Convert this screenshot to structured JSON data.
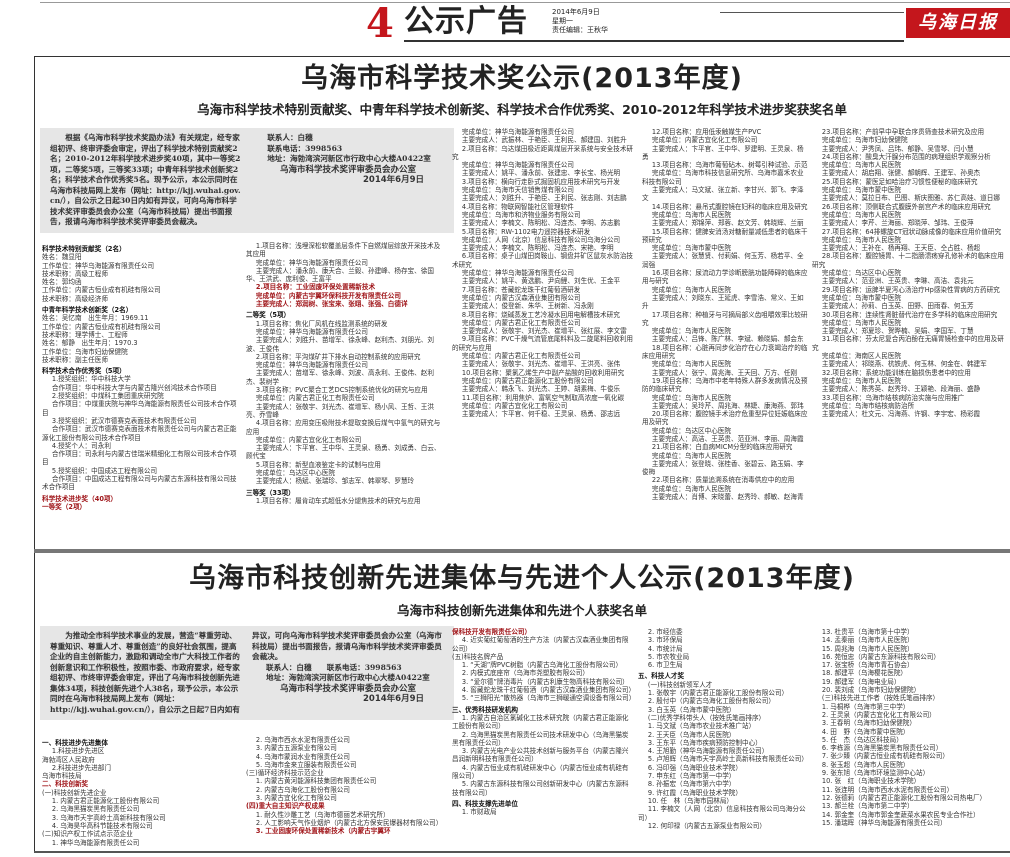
{
  "header": {
    "page_number": "4",
    "section": "公示广告",
    "date": "2014年6月9日",
    "weekday": "星期一",
    "editor": "责任编辑：王秋华",
    "logo_text": "乌海日报",
    "accent_color": "#c4161c"
  },
  "notice1": {
    "title": "乌海市科学技术奖公示(2013年度)",
    "subtitle": "乌海市科学技术特别贡献奖、中青年科学技术创新奖、科学技术合作优秀奖、2010-2012年科学技术进步奖获奖名单",
    "intro_a": "根据《乌海市科学技术奖励办法》有关规定，经专家组初评、终审评委会审定，评出了科学技术特别贡献奖2名；2010-2012年科学技术进步奖40项，其中一等奖2项，二等奖5项，三等奖33项；中青年科学技术创新奖2名；科学技术合作优秀奖5名。现予公示，本公示同时在乌海市科技局网上发布（网址：",
    "intro_url": "http://kjj.wuhai.gov.cn/",
    "intro_b": "），自公示之日起30日内如有异议，可向乌海市科学技术奖评审委员会办公室（乌海市科技局）提出书面报告，报请乌海市科学技术奖评审委员会裁决。",
    "contact": "联系人：白穗",
    "phone": "联系电话：3998563",
    "address": "地址：海勃湾滨河新区市行政中心大楼A0422室",
    "signer": "乌海市科学技术奖评审委员会办公室",
    "date": "2014年6月9日",
    "columns": [
      [
        {
          "s": "h",
          "t": "科学技术特别贡献奖（2名）"
        },
        {
          "t": "姓名：魏显阳"
        },
        {
          "t": "工作单位：神华乌海能源有限责任公司"
        },
        {
          "t": "技术职称：高级工程师"
        },
        {
          "t": "姓名：郭均函"
        },
        {
          "t": "工作单位：内蒙古恒业成有机硅有限公司"
        },
        {
          "t": "技术职称：高级经济师"
        },
        {
          "s": "h",
          "t": "中青年科学技术创新奖（2名）"
        },
        {
          "t": "姓名：吴忆南　出生年月：1969.11"
        },
        {
          "t": "工作单位：内蒙古恒业成有机硅有限公司"
        },
        {
          "t": "技术职称：理学博士、工程师"
        },
        {
          "t": "姓名：郁静　出生年月：1970.3"
        },
        {
          "t": "工作单位：乌海市妇幼保健院"
        },
        {
          "t": "技术职称：副主任医师"
        },
        {
          "s": "h",
          "t": "科学技术合作优秀奖（5项）"
        },
        {
          "s": "i",
          "t": "1.授奖组织：华中科技大学"
        },
        {
          "s": "i",
          "t": "合作项目：华中科技大学与内蒙古隆兴创鸿技术合作项目"
        },
        {
          "s": "i",
          "t": "2.授奖组织：中煤科工集团重庆研究院"
        },
        {
          "s": "i",
          "t": "合作项目：中煤重庆院与神华乌海能源有限责任公司技术合作项目"
        },
        {
          "s": "i",
          "t": "3.授奖组织：武汉市德赛克表面技术有限责任公司"
        },
        {
          "s": "i",
          "t": "合作项目：武汉市德赛克表面技术有限责任公司与内蒙古君正能源化工股份有限公司技术合作项目"
        },
        {
          "s": "i",
          "t": "4.授奖个人：司永利"
        },
        {
          "s": "i",
          "t": "合作项目：司永利与内蒙古佳瑞米精细化工有限公司技术合作项目"
        },
        {
          "s": "i",
          "t": "5.授奖组织：中国成达工程有限公司"
        },
        {
          "s": "i",
          "t": "合作项目：中国成达工程有限公司与内蒙古东源科技有限公司技术合作项目"
        },
        {
          "s": "r h",
          "t": "科学技术进步奖（40项）"
        },
        {
          "s": "r",
          "t": "一等奖（2项）"
        }
      ],
      [
        {
          "s": "i",
          "t": "1.项目名称：浅埋深松软覆盖层条件下自燃煤层综放开采技术及其应用"
        },
        {
          "s": "i",
          "t": "完成单位：神华乌海能源有限责任公司"
        },
        {
          "s": "i",
          "t": "主要完成人：潘永前、康天合、兰毅、孙建峰、杨存宝、徐国华、王洪武、庞利俊、王富平"
        },
        {
          "s": "i r",
          "t": "2.项目名称：工业固废环保处置稀新技术"
        },
        {
          "s": "i r",
          "t": "完成单位：内蒙古宇翼环保科技开发有限责任公司"
        },
        {
          "s": "i r",
          "t": "主要完成人：郑润树、张宝来、张翊、张强、白德详"
        },
        {
          "s": "h",
          "t": "二等奖（5项）"
        },
        {
          "s": "i",
          "t": "1.项目名称：焦化厂风机在线监测系统的研发"
        },
        {
          "s": "i",
          "t": "完成单位：神华乌海能源有限责任公司"
        },
        {
          "s": "i",
          "t": "主要完成人：刘胜升、苗增军、徐永峰、赵利杰、刘朋光、刘波、王俊伟"
        },
        {
          "s": "i",
          "t": "2.项目名称：平沟煤矿井下排水自动控制系统的应用研究"
        },
        {
          "s": "i",
          "t": "完成单位：神华乌海能源有限责任公司"
        },
        {
          "s": "i",
          "t": "主要完成人：苗增军、徐永峰、刘波、高永利、王俊伟、赵利杰、裴树学"
        },
        {
          "s": "i",
          "t": "3.项目名称：PVC聚合工艺DCS控制系统优化的研究与应用"
        },
        {
          "s": "i",
          "t": "完成单位：内蒙古君正化工有限责任公司"
        },
        {
          "s": "i",
          "t": "主要完成人：张敬宇、刘光杰、崔增军、杨小风、王哲、王洪亮、乔雪峰"
        },
        {
          "s": "i",
          "t": "4.项目名称：应用变压吸附技术提取变换后煤气中氢气的研究与应用"
        },
        {
          "s": "i",
          "t": "完成单位：内蒙古宜化化工有限公司"
        },
        {
          "s": "i",
          "t": "主要完成人：卞平官、王中华、王灵泉、杨勇、刘成勇、白云、顾代宝"
        },
        {
          "s": "i",
          "t": "5.项目名称：新型血液鉴定卡的试制与应用"
        },
        {
          "s": "i",
          "t": "完成单位：乌达区中心医院"
        },
        {
          "s": "i",
          "t": "主要完成人：杨斌、张瑞珍、邹志军、韩翠琴、罗慧玲"
        },
        {
          "s": "h",
          "t": "三等奖（33项）"
        },
        {
          "s": "i",
          "t": "1.项目名称：履肯动车式超低水分煺焦技术的研究与应用"
        }
      ],
      [
        {
          "s": "i",
          "t": "完成单位：神华乌海能源有限责任公司"
        },
        {
          "s": "i",
          "t": "主要完成人：武振林、于艳臣、王利民、郝建国、刘胜升"
        },
        {
          "s": "i",
          "t": "2.项目名称：乌达煤田极近距离煤层开采系统与安全技术研究"
        },
        {
          "s": "i",
          "t": "完成单位：神华乌海能源有限责任公司"
        },
        {
          "s": "i",
          "t": "主要完成人：姚平、潘永前、张建忠、李长宝、杨光明"
        },
        {
          "s": "i",
          "t": "3.项目名称：横向行走卧式掘固机应用技术研究与开发"
        },
        {
          "s": "i",
          "t": "完成单位：乌海市天信销售煤有限公司"
        },
        {
          "s": "i",
          "t": "主要完成人：刘胜升、于艳臣、王利民、张志刚、刘志鹏"
        },
        {
          "s": "i",
          "t": "4.项目名称：物联网智能社区管理软件"
        },
        {
          "s": "i",
          "t": "完成单位：乌海市和济物业服务有限公司"
        },
        {
          "s": "i",
          "t": "主要完成人：李楠文、陈明松、冯连杰、李明、苏志鹏"
        },
        {
          "s": "i",
          "t": "5.项目名称：RW-1102电力遥控器技术研发"
        },
        {
          "s": "i",
          "t": "完成单位：人网（北京）信息科技有限公司乌海分公司"
        },
        {
          "s": "i",
          "t": "主要完成人：李楠文、陈明松、冯连杰、宋艳、李明"
        },
        {
          "s": "i",
          "t": "6.项目名称：桌子山煤田岗鞍山、钢盘井矿区鼠灰水防治技术研究"
        },
        {
          "s": "i",
          "t": "完成单位：神华乌海能源有限责任公司"
        },
        {
          "s": "i",
          "t": "主要完成人：姚平、黄选鹏、尹向鲤、刘生优、王金平"
        },
        {
          "s": "i",
          "t": "7.项目名称：苍藏蛇龙珠干红葡萄酒研发"
        },
        {
          "s": "i",
          "t": "完成单位：内蒙古汉森酒业集团有限公司"
        },
        {
          "s": "i",
          "t": "主要完成人：俊登新、朱华、王树新、冯永刚"
        },
        {
          "s": "i",
          "t": "8.项目名称：烧碱蒸发工艺冷凝水回用电解槽技术研究"
        },
        {
          "s": "i",
          "t": "完成单位：内蒙古君正化工有限责任公司"
        },
        {
          "s": "i",
          "t": "主要完成人：张敬宇、刘光杰、崔增平、张红展、李文雷"
        },
        {
          "s": "i",
          "t": "9.项目名称：PVC干燥气流管底尾料料及二旋尾料回收利用的研究与应用"
        },
        {
          "s": "i",
          "t": "完成单位：内蒙古君正化工有限责任公司"
        },
        {
          "s": "i",
          "t": "主要完成人：张敬宇、刘光杰、崔增平、王洪亮、张伟"
        },
        {
          "s": "i",
          "t": "10.项目名称：聚氯乙烯生产中副产盐酸的回收利用研究"
        },
        {
          "s": "i",
          "t": "完成单位：内蒙古君正能源化工股份有限公司"
        },
        {
          "s": "i",
          "t": "主要完成人：韩永飞、刘光杰、王婷、胡素梅、牛俊乐"
        },
        {
          "s": "i",
          "t": "11.项目名称：利用焦炉、富氧空气制取高浓度一氧化碳"
        },
        {
          "s": "i",
          "t": "完成单位：内蒙古宜化化工有限公司"
        },
        {
          "s": "i",
          "t": "主要完成人：卞平官、何千稳、王灵泉、杨勇、邵志远"
        }
      ],
      [
        {
          "s": "i",
          "t": "12.项目名称：应用低汞触媒生产PVC"
        },
        {
          "s": "i",
          "t": "完成单位：内蒙古宜化化工有限公司"
        },
        {
          "s": "i",
          "t": "主要完成人：卞平官、王中华、罗建明、王灵泉、杨勇"
        },
        {
          "s": "i",
          "t": "13.项目名称：乌海市葡萄砧木、树莓引种试验、示范"
        },
        {
          "s": "i",
          "t": "完成单位：乌海市科技信息研究所、乌海市嘉禾农业科技有限公司"
        },
        {
          "s": "i",
          "t": "主要完成人：马文斌、张立新、李甘兴、郭飞、李泽文"
        },
        {
          "s": "i",
          "t": "14.项目名称：悬吊式腹腔镜在妇科的临床应用及研究"
        },
        {
          "s": "i",
          "t": "完成单位：乌海市人民医院"
        },
        {
          "s": "i",
          "t": "主要完成人：郑锦萍、郑蓉、赵文芳、韩晓辉、兰丽"
        },
        {
          "s": "i",
          "t": "15.项目名称：健脾安消汤对糖耐量减低患者的临床干预研究"
        },
        {
          "s": "i",
          "t": "完成单位：乌海市蒙中医院"
        },
        {
          "s": "i",
          "t": "主要完成人：张慧贤、付莉娟、何玉芳、杨若平、全润强"
        },
        {
          "s": "i",
          "t": "16.项目名称：尿流动力学诊断膀胱功能障碍的临床应用与研究"
        },
        {
          "s": "i",
          "t": "完成单位：乌海市人民医院"
        },
        {
          "s": "i",
          "t": "主要完成人：刘晓东、王延虎、李雪浩、常义、王如升"
        },
        {
          "s": "i",
          "t": "17.项目名称：种植牙与可摘局部义齿咀嚼效率比较研究"
        },
        {
          "s": "i",
          "t": "完成单位：乌海市人民医院"
        },
        {
          "s": "i",
          "t": "主要完成人：吕锋、陈广林、李斌、赖晓娟、郝会东"
        },
        {
          "s": "i",
          "t": "18.项目名称：心脏再同步化治疗在心力衰竭治疗的临床应用研究"
        },
        {
          "s": "i",
          "t": "完成单位：乌海市人民医院"
        },
        {
          "s": "i",
          "t": "主要完成人：张宁、周兆海、王天回、万方、任刚"
        },
        {
          "s": "i",
          "t": "19.项目名称：乌海市中老年特殊人群多发病情况及预防的临床研究"
        },
        {
          "s": "i",
          "t": "完成单位：乌海市人民医院"
        },
        {
          "s": "i",
          "t": "主要完成人：吴玲芹、周兆海、林婕、康海燕、郭玮"
        },
        {
          "s": "i",
          "t": "20.项目名称：腹腔镜手术治疗危重型异位妊娠临床应用及研究"
        },
        {
          "s": "i",
          "t": "完成单位：乌达区中心医院"
        },
        {
          "s": "i",
          "t": "主要完成人：高洁、王英贵、范亚洲、李丽、周海霞"
        },
        {
          "s": "i",
          "t": "21.项目名称：白血病MICM分型的临床应用研究"
        },
        {
          "s": "i",
          "t": "完成单位：乌海市人民医院"
        },
        {
          "s": "i",
          "t": "主要完成人：张登晓、张桂香、张碧云、路玉娟、李俊梅"
        },
        {
          "s": "i",
          "t": "22.项目名称：质量追溯系统在消毒供应中的应用"
        },
        {
          "s": "i",
          "t": "完成单位：乌海市人民医院"
        },
        {
          "s": "i",
          "t": "主要完成人：肖博、宋晓蕾、赵秀玲、郝敏、赵海青"
        }
      ],
      [
        {
          "s": "i",
          "t": "23.项目名称：产前早中孕联合序贯筛查技术研究及应用"
        },
        {
          "s": "i",
          "t": "完成单位：乌海市妇幼保健院"
        },
        {
          "s": "i",
          "t": "主要完成人：尹秀凤、吕玮、郁静、吴雪琴、闫小慧"
        },
        {
          "s": "i",
          "t": "24.项目名称：酸臭大汗腺分布范围的病理组织学观察分析"
        },
        {
          "s": "i",
          "t": "完成单位：乌海市人民医院"
        },
        {
          "s": "i",
          "t": "主要完成人：胡启翔、张健、郝朝辉、王建军、孙奥杰"
        },
        {
          "s": "i",
          "t": "25.项目名称：蒙医足如哈治疗习惯性便秘的临床研究"
        },
        {
          "s": "i",
          "t": "完成单位：乌海市蒙中医院"
        },
        {
          "s": "i",
          "t": "主要完成人：莫拉日布、巴图、斯庆图雅、苏仁高娃、道日娜"
        },
        {
          "s": "i",
          "t": "26.项目名称：顶侧联合式腹膜外剖宫产术的临床应用研究"
        },
        {
          "s": "i",
          "t": "完成单位：乌海市人民医院"
        },
        {
          "s": "i",
          "t": "主要完成人：李芹、兰海丽、郑晓萍、邹玮、王俊萍"
        },
        {
          "s": "i",
          "t": "27.项目名称：64排螺旋CT冠状动脉成像的临床应用价值研究"
        },
        {
          "s": "i",
          "t": "完成单位：乌海市人民医院"
        },
        {
          "s": "i",
          "t": "主要完成人：王补在、杨再翔、王天臣、仝占胜、杨超"
        },
        {
          "s": "i",
          "t": "28.项目名称：腹腔镜胃、十二指肠溃疡穿孔修补术的临床应用研究"
        },
        {
          "s": "i",
          "t": "完成单位：乌达区中心医院"
        },
        {
          "s": "i",
          "t": "主要完成人：范亚洲、王英贵、李琳、高洁、袁兆元"
        },
        {
          "s": "i",
          "t": "29.项目名称：运脾半夏泻心汤治疗Hp感染性胃病的方药研究"
        },
        {
          "s": "i",
          "t": "完成单位：乌海市蒙中医院"
        },
        {
          "s": "i",
          "t": "主要完成人：孙莉、白玉英、田野、田雨春、何玉芳"
        },
        {
          "s": "i",
          "t": "30.项目名称：连续性肾脏替代治疗在多学科的临床应用研究"
        },
        {
          "s": "i",
          "t": "完成单位：乌海市人民医院"
        },
        {
          "s": "i",
          "t": "主要完成人：郑夏珍、贺晔楠、吴娟、李国军、丁慧"
        },
        {
          "s": "i",
          "t": "31.项目名称：芬太尼复合丙泊酚在无痛胃镜检查中的应用及研究"
        },
        {
          "s": "i",
          "t": "完成单位：海南区人民医院"
        },
        {
          "s": "i",
          "t": "主要完成人：祁晓燕、杭铁虎、何玉林、何金在、韩建军"
        },
        {
          "s": "i",
          "t": "32.项目名称：系统功能训练在脑损伤患者中的应用"
        },
        {
          "s": "i",
          "t": "完成单位：乌海市人民医院"
        },
        {
          "s": "i",
          "t": "主要完成人：陈秀英、赵秀玲、王颖艳、段海丽、盛静"
        },
        {
          "s": "i",
          "t": "33.项目名称：乌海市结核病防治实施与应用推广"
        },
        {
          "s": "i",
          "t": "完成单位：乌海市结核病防治所"
        },
        {
          "s": "i",
          "t": "主要完成人：杜文元、冯海燕、许钢、李宇宏、杨彩霞"
        }
      ]
    ]
  },
  "notice2": {
    "title": "乌海市科技创新先进集体与先进个人公示(2013年度)",
    "subtitle": "乌海市科技创新先进集体和先进个人获奖名单",
    "intro_a": "为推动全市科学技术事业的发展，营造“尊重劳动、尊重知识、尊重人才、尊重创造”的良好社会氛围，提高企业的自主创新能力，激励和调动全市广大科技工作者的创新意识和工作积极性，按照市委、市政府要求，经专家组初评、市终审评委会审定，评出了乌海市科技创新先进集体34项，科技创新先进个人38名，现予公示，本公示同时在乌海市科技局网上发布（网址：http://kjj.wuhai.gov.cn/），自公示之日起7日内如有异议，可向乌海市科学技术奖评审委员会办公室（乌海市科技局）提出书面报告，报请乌海市科学技术奖评审委员会裁决。",
    "contact": "联系人：白穗　　联系电话：3998563",
    "address": "地址：海勃湾滨河新区市行政中心大楼A0422室",
    "signer": "乌海市科学技术奖评审委员会办公室",
    "date": "2014年6月9日",
    "columns": [
      [
        {
          "s": "h",
          "t": "一、科技进步先进集体"
        },
        {
          "s": "i",
          "t": "1.科技进步先进区"
        },
        {
          "t": "海勃湾区人民政府"
        },
        {
          "s": "i",
          "t": "2.科技进步先进部门"
        },
        {
          "t": "乌海市科技局"
        },
        {
          "s": "r",
          "t": "二、科技创新奖"
        },
        {
          "t": "(一)科技创新先进企业"
        },
        {
          "s": "i",
          "t": "1. 内蒙古君正能源化工股份有限公司"
        },
        {
          "s": "i",
          "t": "2. 乌海黑猫炭黑有限责任公司"
        },
        {
          "s": "i",
          "t": "3. 乌海市天宇高岭土高新科技有限公司"
        },
        {
          "s": "i",
          "t": "4. 乌海昊华高科节能技术有限公司"
        },
        {
          "t": "(二)知识产权工作试点示范企业"
        },
        {
          "s": "i",
          "t": "1. 神华乌海能源有限责任公司"
        }
      ],
      [
        {
          "s": "i",
          "t": "2. 乌海市西水水泥有限责任公司"
        },
        {
          "s": "i",
          "t": "3. 内蒙古五源泵业有限公司"
        },
        {
          "s": "i",
          "t": "4. 乌海市蒙润水业有限责任公司"
        },
        {
          "s": "i",
          "t": "5. 乌海市金来立服装有限责任公司"
        },
        {
          "t": "(三)循环经济科技示范企业"
        },
        {
          "s": "i",
          "t": "1. 内蒙古黄河能源科技集团有限责任公司"
        },
        {
          "s": "i",
          "t": "2. 内蒙古乌海化工股份有限公司"
        },
        {
          "s": "i",
          "t": "3. 内蒙古宜化化工有限公司"
        },
        {
          "s": "r",
          "t": "(四)重大自主知识产权成果"
        },
        {
          "s": "i",
          "t": "1. 耐久性沙雕工艺（乌海市德丽艺术研究所）"
        },
        {
          "s": "i",
          "t": "2. 人工影响天气作业烟炉（内蒙古北方保安民爆器材有限公司）"
        },
        {
          "s": "i r",
          "t": "3. 工业固废环保处置稀新技术（内蒙古宇翼环"
        }
      ],
      [
        {
          "s": "r",
          "t": "保科技开发有限责任公司）"
        },
        {
          "s": "i",
          "t": "4. 近实葡红葡萄酒的生产方法（内蒙古汉森酒业集团有限公司）"
        },
        {
          "t": "(五)科技名牌产品"
        },
        {
          "s": "i",
          "t": "1. “天湖”牌PVC树脂（内蒙古乌海化工股份有限公司）"
        },
        {
          "s": "i",
          "t": "2. 内模式底座帘（乌海市尧塑胶有限公司）"
        },
        {
          "s": "i",
          "t": "3. “爱尔德”牌消毒片（内蒙古利康生物高科技有限公司）"
        },
        {
          "s": "i",
          "t": "4. 窖藏蛇龙珠干红葡萄酒（内蒙古汉森酒业集团有限公司）"
        },
        {
          "s": "i",
          "t": "5. “三狮阳光”散热器（乌海市三狮暖通空调设备有限公司）"
        },
        {
          "s": "h",
          "t": "三、优秀科技研发机构"
        },
        {
          "s": "i",
          "t": "1. 内蒙古自治区氯碱化工技术研究院（内蒙古君正能源化工股份有限公司）"
        },
        {
          "s": "i",
          "t": "2. 乌海黑猫炭黑有限责任公司技术研发中心（乌海黑猫炭黑有限责任公司）"
        },
        {
          "s": "i",
          "t": "3. 内蒙古光电产业公共技术创新与服务平台（内蒙古隆兴昌润新明科技有限责任公司）"
        },
        {
          "s": "i",
          "t": "4. 内蒙古恒业成有机硅研发中心（内蒙古恒业成有机硅有限公司）"
        },
        {
          "s": "i",
          "t": "5. 内蒙古东源科技有限公司创新研发中心（内蒙古东源科技有限公司）"
        },
        {
          "s": "h",
          "t": "四、科技支撑先进单位"
        },
        {
          "s": "i",
          "t": "1. 市财政局"
        }
      ],
      [
        {
          "s": "i",
          "t": "2. 市经信委"
        },
        {
          "s": "i",
          "t": "3. 市环保局"
        },
        {
          "s": "i",
          "t": "4. 市统计局"
        },
        {
          "s": "i",
          "t": "5. 市农牧业局"
        },
        {
          "s": "i",
          "t": "6. 市卫生局"
        },
        {
          "s": "h",
          "t": "五、科技人才奖"
        },
        {
          "s": "i",
          "t": "(一)科技创新领军人才"
        },
        {
          "s": "i",
          "t": "1. 张敬宇（内蒙古君正能源化工股份有限公司）"
        },
        {
          "s": "i",
          "t": "2. 殷付中（内蒙古乌海化工股份有限公司）"
        },
        {
          "s": "i",
          "t": "3. 白玉英（乌海市蒙中医院）"
        },
        {
          "s": "i",
          "t": "(二)优秀学科带头人（按姓氏笔画排序）"
        },
        {
          "s": "i",
          "t": "1. 马文斌（乌海市农业技术推广站）"
        },
        {
          "s": "i",
          "t": "2. 王天臣（乌海市人民医院）"
        },
        {
          "s": "i",
          "t": "3. 王东平（乌海市疾病预防控制中心）"
        },
        {
          "s": "i",
          "t": "4. 王旭勤（神华乌海能源有限责任公司）"
        },
        {
          "s": "i",
          "t": "5. 卢旭辉（乌海市天宇高岭土高新科技有限责任公司）"
        },
        {
          "s": "i",
          "t": "6. 冯印强（乌海职业技术学院）"
        },
        {
          "s": "i",
          "t": "7. 申东红（乌海市第一中学）"
        },
        {
          "s": "i",
          "t": "8. 孙振宏（乌海市第六中学）"
        },
        {
          "s": "i",
          "t": "9. 许红霞（乌海职业技术学院）"
        },
        {
          "s": "i",
          "t": "10. 任　林（乌海市园林局）"
        },
        {
          "s": "i",
          "t": "11. 李楠文（人网（北京）信息科技有限公司乌海分公司）"
        },
        {
          "s": "i",
          "t": "12. 何印禄（内蒙古五源泵业有限公司）"
        }
      ],
      [
        {
          "s": "i",
          "t": "13. 杜贵平（乌海市第十中学）"
        },
        {
          "s": "i",
          "t": "14. 孟秦丽（乌海市人民医院）"
        },
        {
          "s": "i",
          "t": "15. 周兆海（乌海市人民医院）"
        },
        {
          "s": "i",
          "t": "16. 苑恒忠（内蒙古东源科技有限公司）"
        },
        {
          "s": "i",
          "t": "17. 张宝桥（乌海市青石协会）"
        },
        {
          "s": "i",
          "t": "18. 郝建平（乌海樱花医院）"
        },
        {
          "s": "i",
          "t": "19. 郝建军（乌海电业局）"
        },
        {
          "s": "i",
          "t": "20. 裴刘成（乌海市妇幼保健院）"
        },
        {
          "s": "i",
          "t": "(三)科技先进工作者（按姓氏笔画排序）"
        },
        {
          "s": "i",
          "t": "1. 马桐桦（乌海市第三中学）"
        },
        {
          "s": "i",
          "t": "2. 王灵泉（内蒙古宜化化工有限公司）"
        },
        {
          "s": "i",
          "t": "3. 王春明（乌海市妇幼保健院）"
        },
        {
          "s": "i",
          "t": "4. 田　野（乌海市蒙中医院）"
        },
        {
          "s": "i",
          "t": "5. 任　杰（乌达区科技局）"
        },
        {
          "s": "i",
          "t": "6. 李栋源（乌海黑猫炭黑有限责任公司）"
        },
        {
          "s": "i",
          "t": "7. 张少臻（内蒙古恒业成有机硅有限公司）"
        },
        {
          "s": "i",
          "t": "8. 张玉超（乌海市人民医院）"
        },
        {
          "s": "i",
          "t": "9. 张东旭（乌海市环境监测中心站）"
        },
        {
          "s": "i",
          "t": "10. 张　红（乌海职业技术学院）"
        },
        {
          "s": "i",
          "t": "11. 张连明（乌海市西水水泥有限责任公司）"
        },
        {
          "s": "i",
          "t": "12. 张德莉（内蒙古君正能源化工股份有限公司热电厂）"
        },
        {
          "s": "i",
          "t": "13. 郝兰栓（乌海市第二中学）"
        },
        {
          "s": "i",
          "t": "14. 郭金奎（乌海市郭金奎蔬菜水果农民专业合作社）"
        },
        {
          "s": "i",
          "t": "15. 潘瑞晖（神华乌海能源有限责任公司）"
        }
      ]
    ]
  }
}
